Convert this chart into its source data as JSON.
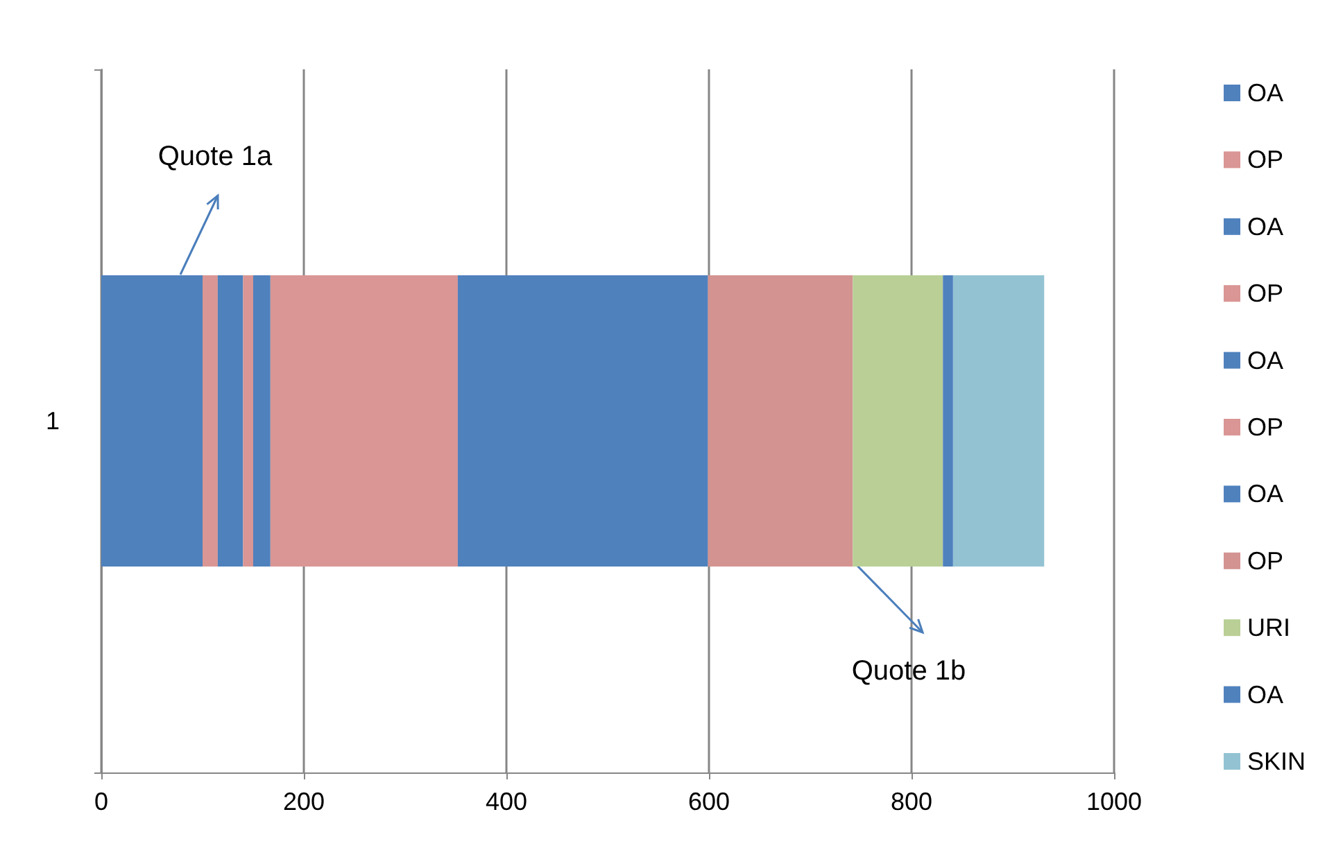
{
  "chart_data": {
    "type": "bar",
    "orientation": "horizontal",
    "stacked": true,
    "categories": [
      "1"
    ],
    "series": [
      {
        "name": "OA",
        "color": "#4f81bd",
        "values": [
          100
        ]
      },
      {
        "name": "OP",
        "color": "#d99694",
        "values": [
          15
        ]
      },
      {
        "name": "OA",
        "color": "#4f81bd",
        "values": [
          25
        ]
      },
      {
        "name": "OP",
        "color": "#d99694",
        "values": [
          10
        ]
      },
      {
        "name": "OA",
        "color": "#4f81bd",
        "values": [
          17
        ]
      },
      {
        "name": "OP",
        "color": "#d99694",
        "values": [
          185
        ]
      },
      {
        "name": "OA",
        "color": "#4f81bd",
        "values": [
          247
        ]
      },
      {
        "name": "OP",
        "color": "#d39391",
        "values": [
          143
        ]
      },
      {
        "name": "URI",
        "color": "#b9cf96",
        "values": [
          89
        ]
      },
      {
        "name": "OA",
        "color": "#4f81bd",
        "values": [
          10
        ]
      },
      {
        "name": "SKIN",
        "color": "#93c3d3",
        "values": [
          90
        ]
      }
    ],
    "xlim": [
      0,
      1000
    ],
    "xticks": [
      0,
      200,
      400,
      600,
      800,
      1000
    ],
    "grid": "x",
    "legend": "right",
    "annotations": [
      "Quote 1a",
      "Quote 1b"
    ]
  }
}
